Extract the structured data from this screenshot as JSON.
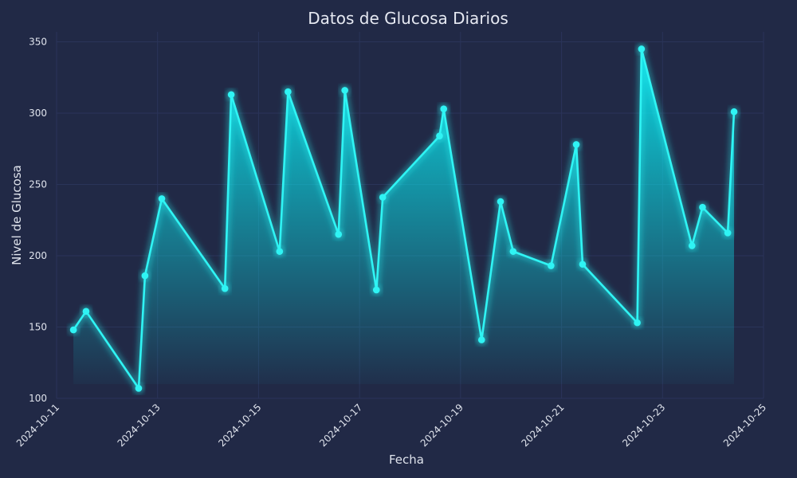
{
  "chart_data": {
    "type": "area",
    "title": "Datos de Glucosa Diarios",
    "xlabel": "Fecha",
    "ylabel": "Nivel de Glucosa",
    "ylim": [
      100,
      357
    ],
    "xlim": [
      "2024-10-11",
      "2024-10-25"
    ],
    "yticks": [
      100,
      150,
      200,
      250,
      300,
      350
    ],
    "xticks": [
      "2024-10-11",
      "2024-10-13",
      "2024-10-15",
      "2024-10-17",
      "2024-10-19",
      "2024-10-21",
      "2024-10-23",
      "2024-10-25"
    ],
    "grid": true,
    "colors": {
      "background": "#212946",
      "line": "#2ff4f4",
      "grid": "#2a3459",
      "text": "#dfe3ec"
    },
    "series": [
      {
        "x": [
          "2024-10-11 08:00",
          "2024-10-11 14:00",
          "2024-10-12 15:00",
          "2024-10-12 18:00",
          "2024-10-13 02:00",
          "2024-10-14 08:00",
          "2024-10-14 11:00",
          "2024-10-15 10:00",
          "2024-10-15 14:00",
          "2024-10-16 14:00",
          "2024-10-16 17:00",
          "2024-10-17 08:00",
          "2024-10-17 11:00",
          "2024-10-18 14:00",
          "2024-10-18 16:00",
          "2024-10-19 10:00",
          "2024-10-19 19:00",
          "2024-10-20 01:00",
          "2024-10-20 19:00",
          "2024-10-21 07:00",
          "2024-10-21 10:00",
          "2024-10-22 12:00",
          "2024-10-22 14:00",
          "2024-10-23 14:00",
          "2024-10-23 19:00",
          "2024-10-24 07:00",
          "2024-10-24 10:00"
        ],
        "values": [
          148,
          161,
          107,
          186,
          240,
          177,
          313,
          203,
          315,
          215,
          316,
          176,
          241,
          284,
          303,
          141,
          238,
          203,
          193,
          278,
          194,
          153,
          345,
          207,
          234,
          216,
          301
        ]
      }
    ]
  }
}
